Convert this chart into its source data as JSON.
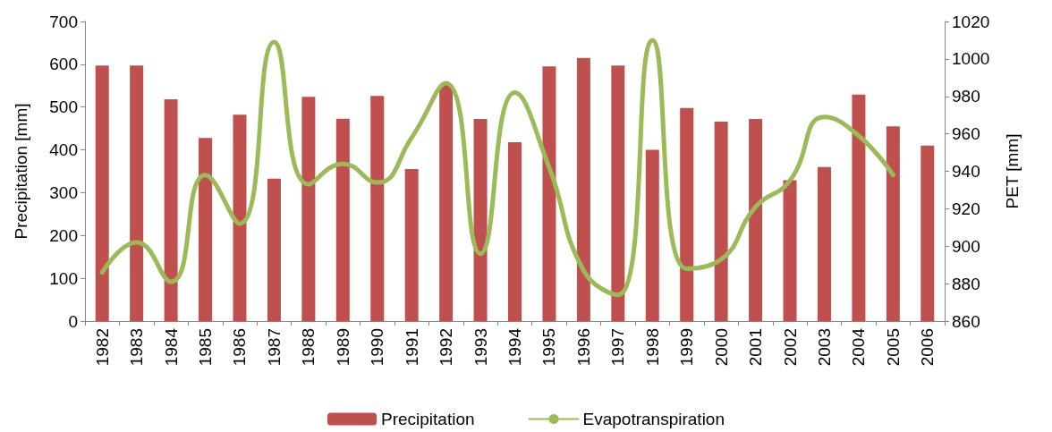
{
  "chart_data": {
    "type": "bar",
    "categories": [
      "1982",
      "1983",
      "1984",
      "1985",
      "1986",
      "1987",
      "1988",
      "1989",
      "1990",
      "1991",
      "1992",
      "1993",
      "1994",
      "1995",
      "1996",
      "1997",
      "1998",
      "1999",
      "2000",
      "2001",
      "2002",
      "2003",
      "2004",
      "2005",
      "2006"
    ],
    "series": [
      {
        "name": "Precipitation",
        "color": "#c0504d",
        "values": [
          597,
          597,
          518,
          428,
          482,
          333,
          524,
          473,
          526,
          355,
          552,
          472,
          418,
          595,
          615,
          597,
          400,
          498,
          466,
          472,
          329,
          360,
          529,
          455,
          410
        ]
      },
      {
        "name": "Evapotranspiration",
        "type": "line",
        "axis": "y2",
        "color": "#9bbb59",
        "values": [
          886,
          902,
          881,
          938,
          912,
          1009,
          933,
          944,
          934,
          958,
          987,
          896,
          982,
          942,
          887,
          874,
          1010,
          888,
          893,
          921,
          935,
          969,
          959,
          938,
          null
        ]
      }
    ],
    "ylabel": "Precipitation [mm]",
    "y2label": "PET [mm]",
    "ylim": [
      0,
      700
    ],
    "yticks": [
      0,
      100,
      200,
      300,
      400,
      500,
      600,
      700
    ],
    "y2lim": [
      860,
      1020
    ],
    "y2ticks": [
      860,
      880,
      900,
      920,
      940,
      960,
      980,
      1000,
      1020
    ],
    "legend": "bottom",
    "marker": "none",
    "line_style": "solid",
    "grid": false
  }
}
